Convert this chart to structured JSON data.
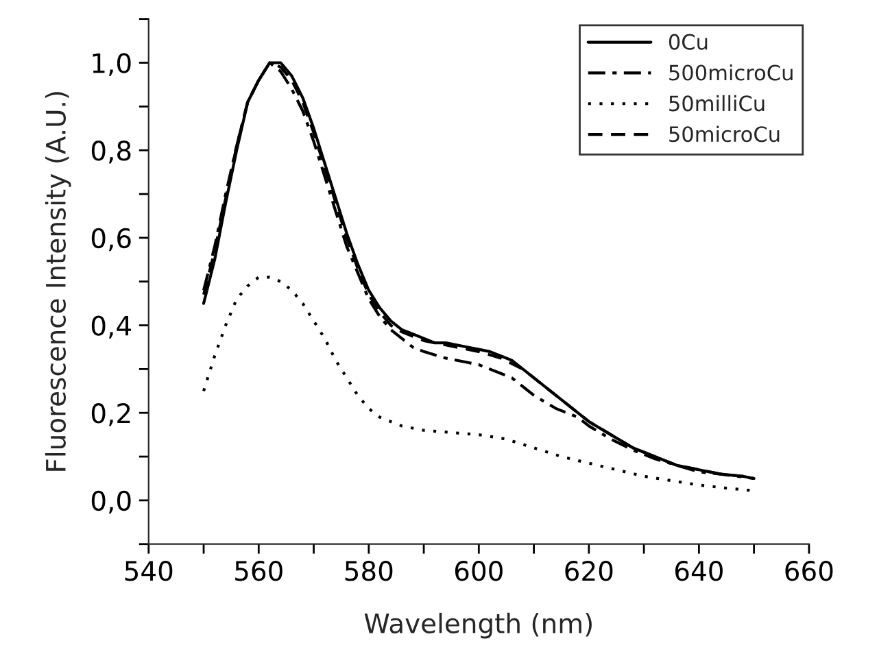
{
  "chart_data": {
    "type": "line",
    "xlabel": "Wavelength (nm)",
    "ylabel": "Fluorescence Intensity (A.U.)",
    "xlim": [
      540,
      660
    ],
    "ylim": [
      -0.1,
      1.1
    ],
    "xticks": [
      540,
      {
        "value": 550,
        "label": null
      },
      560,
      {
        "value": 570,
        "label": null
      },
      580,
      {
        "value": 590,
        "label": null
      },
      600,
      {
        "value": 610,
        "label": null
      },
      620,
      {
        "value": 630,
        "label": null
      },
      640,
      {
        "value": 650,
        "label": null
      },
      660
    ],
    "yticks": [
      {
        "value": -0.1,
        "label": null
      },
      {
        "value": 0.0,
        "label": "0,0"
      },
      {
        "value": 0.1,
        "label": null
      },
      {
        "value": 0.2,
        "label": "0,2"
      },
      {
        "value": 0.3,
        "label": null
      },
      {
        "value": 0.4,
        "label": "0,4"
      },
      {
        "value": 0.5,
        "label": null
      },
      {
        "value": 0.6,
        "label": "0,6"
      },
      {
        "value": 0.7,
        "label": null
      },
      {
        "value": 0.8,
        "label": "0,8"
      },
      {
        "value": 0.9,
        "label": null
      },
      {
        "value": 1.0,
        "label": "1,0"
      },
      {
        "value": 1.1,
        "label": null
      }
    ],
    "grid": false,
    "legend": "top right",
    "series": [
      {
        "name": "0Cu",
        "color": "#000000",
        "line_style": "solid",
        "x": [
          550,
          552,
          554,
          556,
          558,
          560,
          562,
          564,
          566,
          568,
          570,
          572,
          574,
          576,
          578,
          580,
          582,
          584,
          586,
          588,
          590,
          592,
          594,
          596,
          598,
          600,
          602,
          604,
          606,
          608,
          610,
          612,
          614,
          616,
          618,
          620,
          624,
          628,
          632,
          636,
          640,
          644,
          648,
          650
        ],
        "values": [
          0.45,
          0.55,
          0.68,
          0.8,
          0.91,
          0.96,
          1.0,
          1.0,
          0.97,
          0.92,
          0.85,
          0.77,
          0.69,
          0.61,
          0.54,
          0.48,
          0.44,
          0.41,
          0.39,
          0.38,
          0.37,
          0.36,
          0.36,
          0.355,
          0.35,
          0.345,
          0.34,
          0.33,
          0.32,
          0.3,
          0.28,
          0.26,
          0.24,
          0.22,
          0.2,
          0.18,
          0.15,
          0.12,
          0.1,
          0.08,
          0.07,
          0.06,
          0.055,
          0.05
        ]
      },
      {
        "name": "500microCu",
        "color": "#000000",
        "line_style": "dashdot",
        "x": [
          550,
          552,
          554,
          556,
          558,
          560,
          562,
          564,
          566,
          568,
          570,
          572,
          574,
          576,
          578,
          580,
          582,
          584,
          586,
          588,
          590,
          594,
          598,
          600,
          602,
          604,
          606,
          608,
          610,
          614,
          618,
          620,
          624,
          628,
          632,
          636,
          640,
          644,
          650
        ],
        "values": [
          0.48,
          0.58,
          0.7,
          0.81,
          0.91,
          0.96,
          1.0,
          0.98,
          0.94,
          0.89,
          0.82,
          0.74,
          0.66,
          0.58,
          0.52,
          0.46,
          0.42,
          0.39,
          0.37,
          0.35,
          0.34,
          0.325,
          0.315,
          0.31,
          0.3,
          0.29,
          0.28,
          0.26,
          0.24,
          0.21,
          0.19,
          0.17,
          0.14,
          0.115,
          0.095,
          0.08,
          0.065,
          0.06,
          0.05
        ]
      },
      {
        "name": "50milliCu",
        "color": "#000000",
        "line_style": "dotted",
        "x": [
          550,
          552,
          554,
          556,
          558,
          560,
          562,
          564,
          566,
          568,
          570,
          572,
          574,
          576,
          578,
          580,
          582,
          584,
          586,
          590,
          595,
          600,
          605,
          610,
          615,
          620,
          625,
          630,
          635,
          640,
          645,
          650
        ],
        "values": [
          0.25,
          0.33,
          0.4,
          0.46,
          0.49,
          0.51,
          0.51,
          0.5,
          0.48,
          0.45,
          0.41,
          0.37,
          0.32,
          0.28,
          0.24,
          0.21,
          0.19,
          0.18,
          0.17,
          0.16,
          0.155,
          0.15,
          0.14,
          0.12,
          0.1,
          0.085,
          0.07,
          0.055,
          0.045,
          0.035,
          0.028,
          0.022
        ]
      },
      {
        "name": "50microCu",
        "color": "#000000",
        "line_style": "dashed",
        "x": [
          550,
          552,
          554,
          556,
          558,
          560,
          562,
          564,
          566,
          568,
          570,
          572,
          574,
          576,
          578,
          580,
          582,
          584,
          586,
          588,
          590,
          594,
          598,
          600,
          604,
          608,
          612,
          616,
          620,
          624,
          628,
          632,
          636,
          640,
          644,
          648,
          650
        ],
        "values": [
          0.47,
          0.57,
          0.69,
          0.81,
          0.91,
          0.96,
          1.0,
          0.99,
          0.96,
          0.91,
          0.84,
          0.76,
          0.68,
          0.6,
          0.53,
          0.47,
          0.43,
          0.4,
          0.385,
          0.375,
          0.365,
          0.355,
          0.345,
          0.34,
          0.325,
          0.3,
          0.26,
          0.22,
          0.18,
          0.15,
          0.12,
          0.1,
          0.08,
          0.07,
          0.06,
          0.055,
          0.05
        ]
      }
    ]
  }
}
